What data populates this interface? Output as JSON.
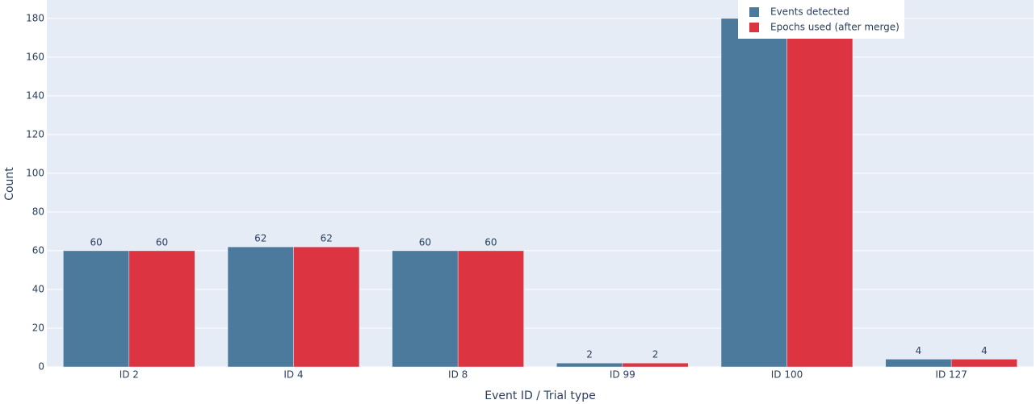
{
  "chart_data": {
    "type": "bar",
    "x_label": "Event ID / Trial type",
    "y_label": "Count",
    "categories": [
      "ID 2",
      "ID 4",
      "ID 8",
      "ID 99",
      "ID 100",
      "ID 127"
    ],
    "series": [
      {
        "name": "Events detected",
        "color": "#4c7a9d",
        "values": [
          60,
          62,
          60,
          2,
          180,
          4
        ]
      },
      {
        "name": "Epochs used (after merge)",
        "color": "#dc3441",
        "values": [
          60,
          62,
          60,
          2,
          180,
          4
        ]
      }
    ],
    "ylim": [
      0,
      189.5
    ],
    "yticks": [
      0,
      20,
      40,
      60,
      80,
      100,
      120,
      140,
      160,
      180
    ],
    "grid": true,
    "legend": "top-right"
  }
}
